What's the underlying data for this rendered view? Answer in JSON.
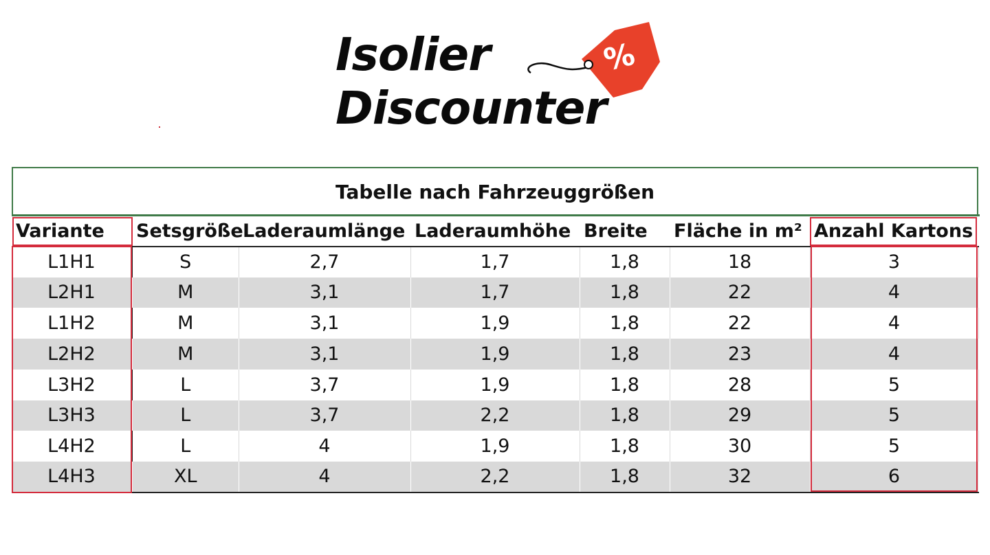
{
  "logo": {
    "line1": "Isolier",
    "line2": "Discounter",
    "tag_symbol": "%",
    "tag_color": "#e8412a"
  },
  "table": {
    "title": "Tabelle nach Fahrzeuggrößen",
    "headers": [
      "Variante",
      "Setsgröße",
      "Laderaumlänge",
      "Laderaumhöhe",
      "Breite",
      "Fläche in m²",
      "Anzahl Kartons"
    ],
    "rows": [
      [
        "L1H1",
        "S",
        "2,7",
        "1,7",
        "1,8",
        "18",
        "3"
      ],
      [
        "L2H1",
        "M",
        "3,1",
        "1,7",
        "1,8",
        "22",
        "4"
      ],
      [
        "L1H2",
        "M",
        "3,1",
        "1,9",
        "1,8",
        "22",
        "4"
      ],
      [
        "L2H2",
        "M",
        "3,1",
        "1,9",
        "1,8",
        "23",
        "4"
      ],
      [
        "L3H2",
        "L",
        "3,7",
        "1,9",
        "1,8",
        "28",
        "5"
      ],
      [
        "L3H3",
        "L",
        "3,7",
        "2,2",
        "1,8",
        "29",
        "5"
      ],
      [
        "L4H2",
        "L",
        "4",
        "1,9",
        "1,8",
        "30",
        "5"
      ],
      [
        "L4H3",
        "XL",
        "4",
        "2,2",
        "1,8",
        "32",
        "6"
      ]
    ]
  },
  "colors": {
    "highlight": "#d42b3c",
    "frame": "#3f7a48",
    "stripe": "#d9d9d9"
  }
}
